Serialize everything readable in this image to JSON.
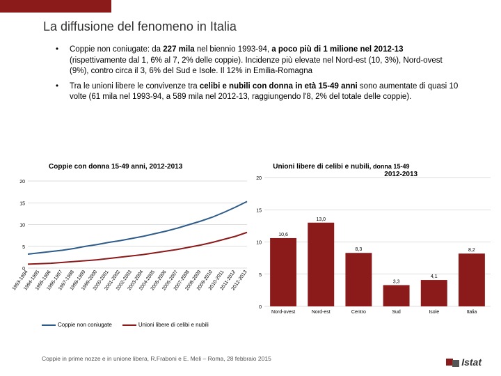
{
  "title": "La diffusione del fenomeno in Italia",
  "title_color": "#333333",
  "topbar_color": "#8b1a1a",
  "bullets": [
    "Coppie non coniugate: da <b>227 mila</b> nel biennio 1993-94, <b>a poco più di 1 milione nel 2012-13</b> (rispettivamente dal 1, 6% al 7, 2% delle coppie). Incidenze più elevate nel Nord-est (10, 3%), Nord-ovest (9%), contro circa il 3, 6% del Sud e Isole. Il 12% in Emilia-Romagna",
    "Tra le unioni libere le convivenze tra <b>celibi e nubili con donna in età 15-49 anni</b> sono aumentate di quasi 10 volte (61 mila nel 1993-94, a 589 mila nel 2012-13, raggiungendo l'8, 2% del totale delle coppie)."
  ],
  "chart1": {
    "title": "Coppie con donna 15-49 anni, 2012-2013",
    "xlabels": [
      "1993-1994",
      "1994-1995",
      "1995-1996",
      "1996-1997",
      "1997-1998",
      "1998-1999",
      "1999-2000",
      "2000-2001",
      "2001-2002",
      "2002-2003",
      "2003-2004",
      "2004-2005",
      "2005-2006",
      "2006-2007",
      "2007-2008",
      "2008-2009",
      "2009-2010",
      "2010-2011",
      "2011-2012",
      "2012-2013"
    ],
    "ylim": [
      0,
      20
    ],
    "yticks": [
      0,
      5,
      10,
      15,
      20
    ],
    "series": [
      {
        "name": "Coppie non coniugate",
        "color": "#2e5c8a",
        "values": [
          3.2,
          3.5,
          3.8,
          4.1,
          4.5,
          5.0,
          5.4,
          5.9,
          6.3,
          6.8,
          7.3,
          7.9,
          8.5,
          9.2,
          10.0,
          10.8,
          11.7,
          12.8,
          14.0,
          15.3
        ]
      },
      {
        "name": "Unioni libere di celibi e nubili",
        "color": "#8b1a1a",
        "values": [
          0.9,
          1.0,
          1.1,
          1.3,
          1.5,
          1.7,
          1.9,
          2.2,
          2.5,
          2.8,
          3.1,
          3.5,
          3.9,
          4.3,
          4.8,
          5.3,
          5.9,
          6.6,
          7.3,
          8.2
        ]
      }
    ],
    "grid_color": "#bbbbbb",
    "axis_fontsize": 7
  },
  "chart2": {
    "title": "Unioni libere di celibi e nubili,",
    "title_sub": " donna 15-49",
    "subtitle": "2012-2013",
    "categories": [
      "Nord-ovest",
      "Nord-est",
      "Centro",
      "Sud",
      "Isole",
      "Italia"
    ],
    "values": [
      10.6,
      13.0,
      8.3,
      3.3,
      4.1,
      8.2
    ],
    "bar_color": "#8b1a1a",
    "ylim": [
      0,
      20
    ],
    "yticks": [
      0,
      5,
      10,
      15,
      20
    ],
    "grid_color": "#bbbbbb",
    "label_fontsize": 7,
    "value_fontsize": 7
  },
  "footer": "Coppie in prime nozze e in unione libera, R.Fraboni e E. Meli – Roma, 28 febbraio 2015",
  "logo": {
    "bars": [
      "#8b1a1a",
      "#8b1a1a",
      "#555"
    ],
    "text": "Istat"
  }
}
